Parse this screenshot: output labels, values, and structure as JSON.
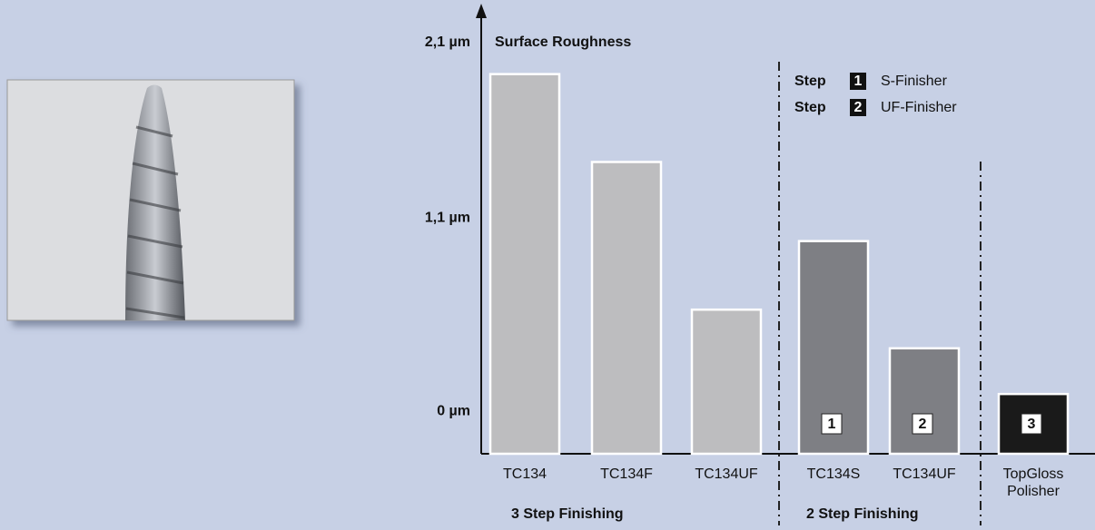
{
  "chart_data": {
    "type": "bar",
    "title": "Surface Roughness",
    "categories": [
      "TC134",
      "TC134F",
      "TC134UF",
      "TC134S",
      "TC134UF",
      "TopGloss Polisher"
    ],
    "values": [
      1.92,
      1.42,
      0.58,
      0.97,
      0.36,
      0.1
    ],
    "colors": [
      "#bdbdbf",
      "#bdbdbf",
      "#bdbdbf",
      "#7e7f84",
      "#7e7f84",
      "#1a1a1a"
    ],
    "ylim": [
      -0.24,
      2.29
    ],
    "yticks": [
      {
        "value": 0,
        "label": "0 µm"
      },
      {
        "value": 1.1,
        "label": "1,1 µm"
      },
      {
        "value": 2.1,
        "label": "2,1 µm"
      }
    ],
    "step_markers": [
      "1",
      "2",
      "3"
    ],
    "groups": [
      "3 Step Finishing",
      "2 Step Finishing"
    ],
    "legend": [
      {
        "step": "Step",
        "number": "1",
        "text": "S-Finisher"
      },
      {
        "step": "Step",
        "number": "2",
        "text": "UF-Finisher"
      }
    ]
  }
}
